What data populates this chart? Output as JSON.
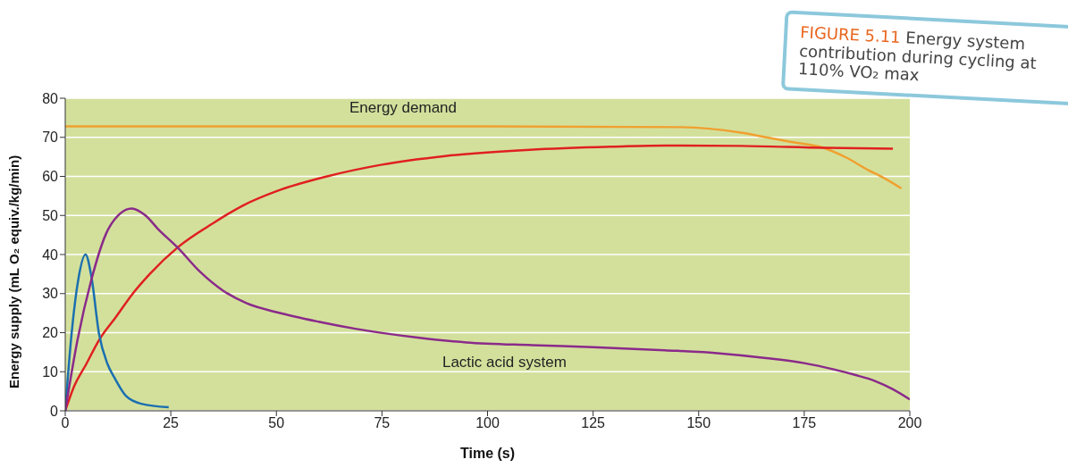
{
  "chart_data": {
    "type": "line",
    "title": "FIGURE 5.11 Energy system contribution during cycling at 110% VO₂ max",
    "xlabel": "Time (s)",
    "ylabel": "Energy supply (mL O₂ equiv./kg/min)",
    "xlim": [
      0,
      200
    ],
    "xticks": [
      0,
      25,
      50,
      75,
      100,
      125,
      150,
      175,
      200
    ],
    "ylim": [
      0,
      80
    ],
    "yticks": [
      0,
      10,
      20,
      30,
      40,
      50,
      60,
      70,
      80
    ],
    "grid": "y",
    "legend": false,
    "marker": "none",
    "line_style": "solid",
    "series": [
      {
        "name": "Energy demand",
        "color": "#f0a030",
        "x": [
          0,
          50,
          100,
          146,
          160,
          166,
          172,
          179,
          185,
          190,
          194,
          198
        ],
        "values": [
          72.8,
          72.8,
          72.8,
          72.6,
          71.2,
          70,
          68.8,
          67.5,
          64.8,
          61.7,
          59.5,
          56.9
        ]
      },
      {
        "color": "#e02020",
        "x": [
          0,
          2,
          5,
          8,
          12,
          16,
          20,
          26.6,
          35,
          42,
          50,
          62,
          75,
          90,
          110,
          130,
          142,
          160,
          180,
          196
        ],
        "values": [
          0,
          6,
          12,
          18.1,
          24,
          30,
          35,
          41.8,
          48,
          52.5,
          56.2,
          60,
          63,
          65.2,
          66.8,
          67.6,
          67.9,
          67.8,
          67.3,
          67.1
        ]
      },
      {
        "color": "#1a6fb0",
        "x": [
          0,
          1.5,
          3,
          4.8,
          6.2,
          8,
          10,
          11.6,
          14.4,
          18,
          24.5
        ],
        "values": [
          0,
          19.7,
          33,
          40,
          34.3,
          19.7,
          12,
          8.6,
          3.8,
          1.8,
          0.9
        ]
      },
      {
        "name": "Lactic acid system",
        "color": "#8a2a8a",
        "x": [
          0,
          2.9,
          6.2,
          9.7,
          13,
          15.7,
          19,
          22,
          26.6,
          32,
          37.3,
          43,
          50.2,
          60,
          68.7,
          83,
          95,
          110.5,
          125,
          142,
          155,
          166,
          175,
          182,
          187,
          191.6,
          196,
          200
        ],
        "values": [
          0,
          18.1,
          33.6,
          45.4,
          50.5,
          51.8,
          50,
          46.5,
          41.8,
          35.5,
          30.8,
          27.5,
          25.2,
          22.8,
          21,
          18.8,
          17.5,
          16.8,
          16.3,
          15.5,
          14.7,
          13.5,
          12.2,
          10.6,
          9.2,
          7.7,
          5.5,
          2.9
        ]
      }
    ]
  }
}
